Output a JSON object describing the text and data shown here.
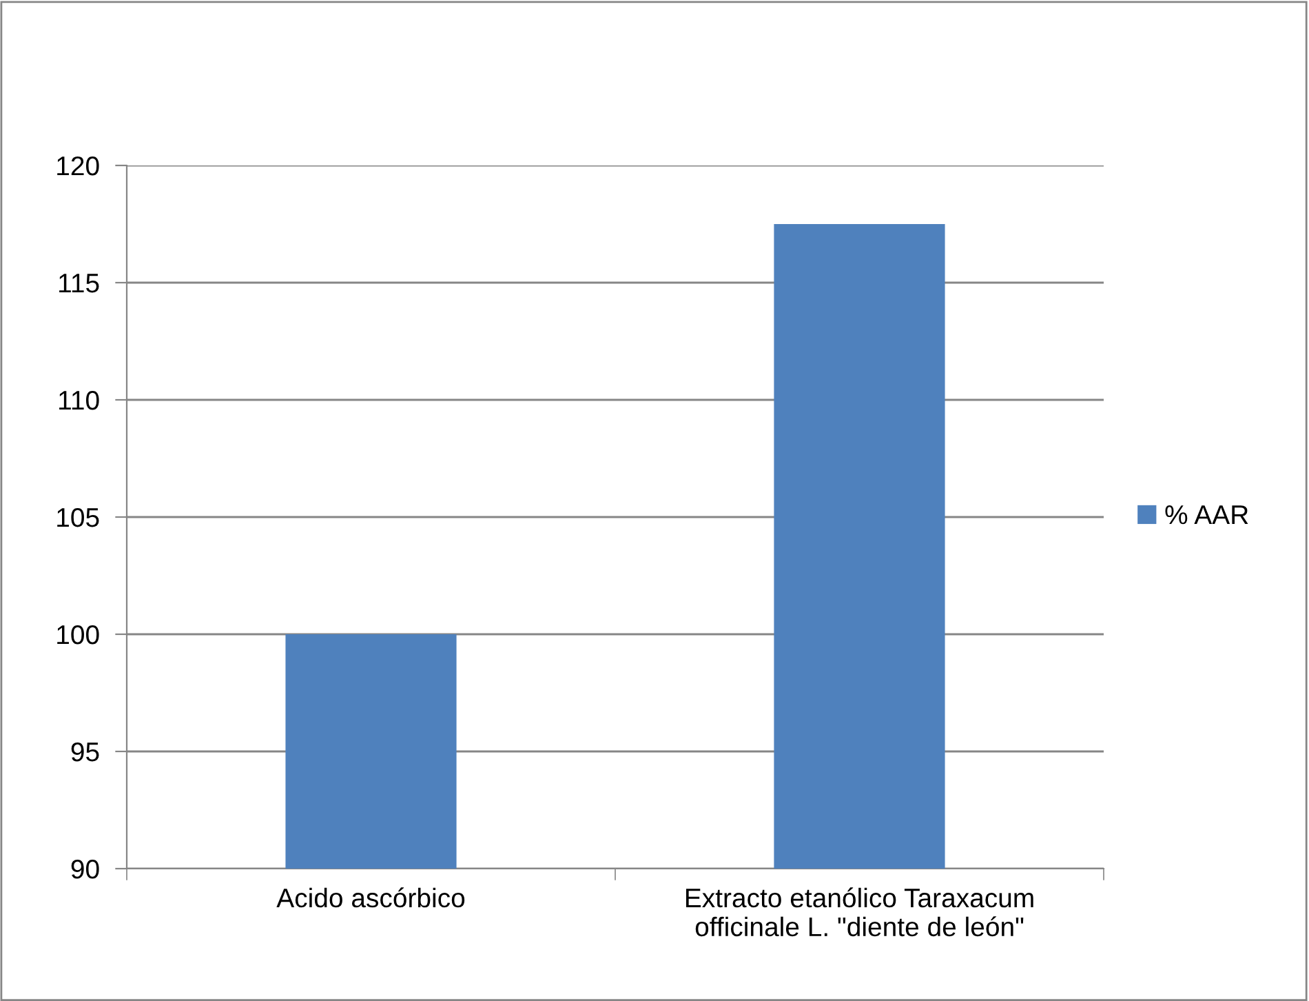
{
  "chart_data": {
    "type": "bar",
    "categories": [
      "Acido ascórbico",
      "Extracto etanólico Taraxacum\nofficinale L. \"diente de león\""
    ],
    "series": [
      {
        "name": "% AAR",
        "color": "#4f81bd",
        "values": [
          100,
          117.5
        ]
      }
    ],
    "ylim": [
      90,
      120
    ],
    "yticks": [
      90,
      95,
      100,
      105,
      110,
      115,
      120
    ],
    "grid": "y",
    "legend": "right"
  }
}
